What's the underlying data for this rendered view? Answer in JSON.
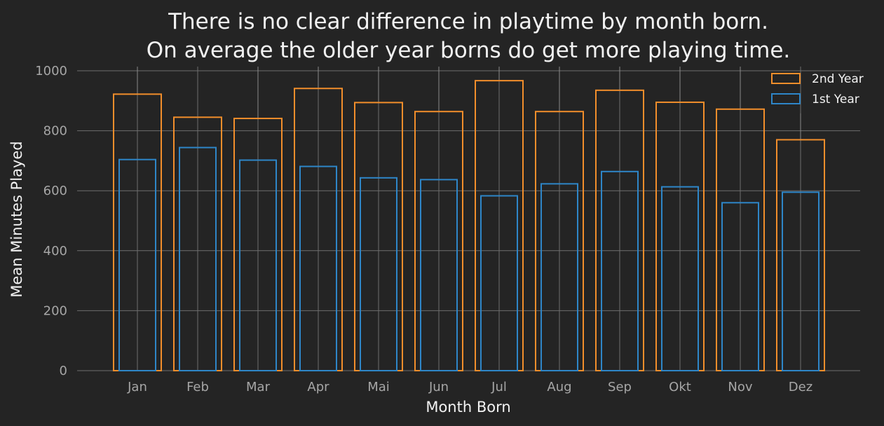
{
  "chart_data": {
    "type": "bar",
    "title": [
      "There is no clear difference in playtime by month born.",
      "On average the older year borns do get more playing time."
    ],
    "xlabel": "Month Born",
    "ylabel": "Mean Minutes Played",
    "categories": [
      "Jan",
      "Feb",
      "Mar",
      "Apr",
      "Mai",
      "Jun",
      "Jul",
      "Aug",
      "Sep",
      "Okt",
      "Nov",
      "Dez"
    ],
    "yticks": [
      0,
      200,
      400,
      600,
      800,
      1000
    ],
    "ylim": [
      0,
      1000
    ],
    "grid": true,
    "legend_position": "top-right",
    "series": [
      {
        "name": "2nd Year",
        "color": "#f28e2b",
        "values": [
          922,
          845,
          841,
          941,
          894,
          864,
          967,
          864,
          935,
          895,
          872,
          770
        ],
        "error_upper": [
          1013,
          null,
          1013,
          1013,
          1013,
          1013,
          1013,
          1013,
          1013,
          1013,
          1013,
          858
        ]
      },
      {
        "name": "1st Year",
        "color": "#2e86c8",
        "values": [
          704,
          744,
          702,
          681,
          643,
          637,
          583,
          623,
          664,
          613,
          560,
          595
        ]
      }
    ]
  }
}
